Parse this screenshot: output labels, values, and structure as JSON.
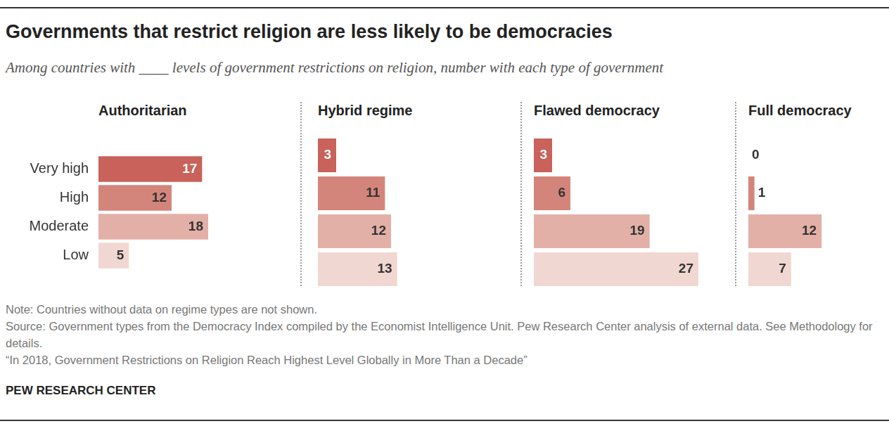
{
  "title": "Governments that restrict religion are less likely to be democracies",
  "subtitle": "Among countries with ____ levels of government restrictions on religion, number with each type of government",
  "notes": [
    "Note:  Countries without data on regime types are not shown.",
    "Source: Government types from the Democracy Index compiled by the Economist Intelligence Unit. Pew Research Center analysis of external data. See Methodology for details.",
    "“In 2018, Government Restrictions on Religion Reach Highest Level Globally in More Than a Decade”"
  ],
  "credit": "PEW RESEARCH CENTER",
  "chart_data": [
    {
      "type": "bar",
      "title": "Authoritarian",
      "orientation": "horizontal",
      "categories": [
        "Very high",
        "High",
        "Moderate",
        "Low"
      ],
      "values": [
        17,
        12,
        18,
        5
      ],
      "colors": [
        "#c9625a",
        "#d4857b",
        "#e3b0a7",
        "#f1d7d1"
      ],
      "xlim": [
        0,
        30
      ],
      "grid": false,
      "data_labels": true,
      "tick_labels": "y"
    },
    {
      "type": "bar",
      "title": "Hybrid regime",
      "orientation": "horizontal",
      "categories": [
        "Very high",
        "High",
        "Moderate",
        "Low"
      ],
      "values": [
        3,
        11,
        12,
        13
      ],
      "colors": [
        "#c9625a",
        "#d4857b",
        "#e3b0a7",
        "#f1d7d1"
      ],
      "xlim": [
        0,
        30
      ],
      "grid": false,
      "data_labels": true,
      "tick_labels": false
    },
    {
      "type": "bar",
      "title": "Flawed democracy",
      "orientation": "horizontal",
      "categories": [
        "Very high",
        "High",
        "Moderate",
        "Low"
      ],
      "values": [
        3,
        6,
        19,
        27
      ],
      "colors": [
        "#c9625a",
        "#d4857b",
        "#e3b0a7",
        "#f1d7d1"
      ],
      "xlim": [
        0,
        30
      ],
      "grid": false,
      "data_labels": true,
      "tick_labels": false
    },
    {
      "type": "bar",
      "title": "Full democracy",
      "orientation": "horizontal",
      "categories": [
        "Very high",
        "High",
        "Moderate",
        "Low"
      ],
      "values": [
        0,
        1,
        12,
        7
      ],
      "colors": [
        "#c9625a",
        "#d4857b",
        "#e3b0a7",
        "#f1d7d1"
      ],
      "xlim": [
        0,
        22
      ],
      "grid": false,
      "data_labels": true,
      "tick_labels": false
    }
  ]
}
